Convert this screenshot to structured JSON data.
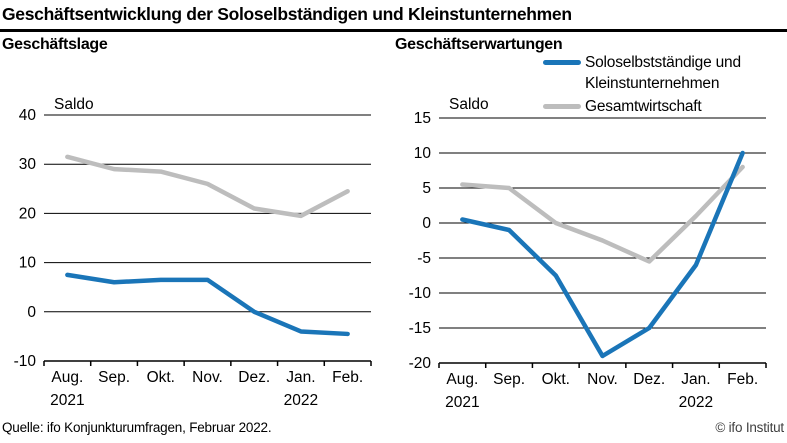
{
  "title": "Geschäftsentwicklung der Soloselbständigen und Kleinstunternehmen",
  "legend": {
    "items": [
      {
        "label": "Soloselbstständige und Kleinstunternehmen",
        "color": "#1a75b8"
      },
      {
        "label": "Gesamtwirtschaft",
        "color": "#bdbdbd"
      }
    ]
  },
  "footer": {
    "source": "Quelle: ifo Konjunkturumfragen, Februar 2022.",
    "copyright": "© ifo Institut"
  },
  "colors": {
    "solo_blue": "#1a75b8",
    "gesamt_gray": "#bdbdbd",
    "grid": "#000000"
  },
  "chart_data": [
    {
      "type": "line",
      "title": "Geschäftslage",
      "ylabel": "Saldo",
      "categories": [
        "Aug.",
        "Sep.",
        "Okt.",
        "Nov.",
        "Dez.",
        "Jan.",
        "Feb."
      ],
      "year_labels": [
        {
          "index": 0,
          "label": "2021"
        },
        {
          "index": 5,
          "label": "2022"
        }
      ],
      "ylim": [
        -10,
        40
      ],
      "ytick_step": 10,
      "grid": true,
      "legend_position": "none",
      "series": [
        {
          "name": "Soloselbstständige und Kleinstunternehmen",
          "color": "#1a75b8",
          "values": [
            7.5,
            6,
            6.5,
            6.5,
            0,
            -4,
            -4.5
          ]
        },
        {
          "name": "Gesamtwirtschaft",
          "color": "#bdbdbd",
          "values": [
            31.5,
            29,
            28.5,
            26,
            21,
            19.5,
            24.5
          ]
        }
      ]
    },
    {
      "type": "line",
      "title": "Geschäftserwartungen",
      "ylabel": "Saldo",
      "categories": [
        "Aug.",
        "Sep.",
        "Okt.",
        "Nov.",
        "Dez.",
        "Jan.",
        "Feb."
      ],
      "year_labels": [
        {
          "index": 0,
          "label": "2021"
        },
        {
          "index": 5,
          "label": "2022"
        }
      ],
      "ylim": [
        -20,
        15
      ],
      "ytick_step": 5,
      "grid": true,
      "legend_position": "top-right",
      "series": [
        {
          "name": "Soloselbstständige und Kleinstunternehmen",
          "color": "#1a75b8",
          "values": [
            0.5,
            -1,
            -7.5,
            -19,
            -15,
            -6,
            10
          ]
        },
        {
          "name": "Gesamtwirtschaft",
          "color": "#bdbdbd",
          "values": [
            5.5,
            5,
            0,
            -2.5,
            -5.5,
            1,
            8
          ]
        }
      ]
    }
  ]
}
